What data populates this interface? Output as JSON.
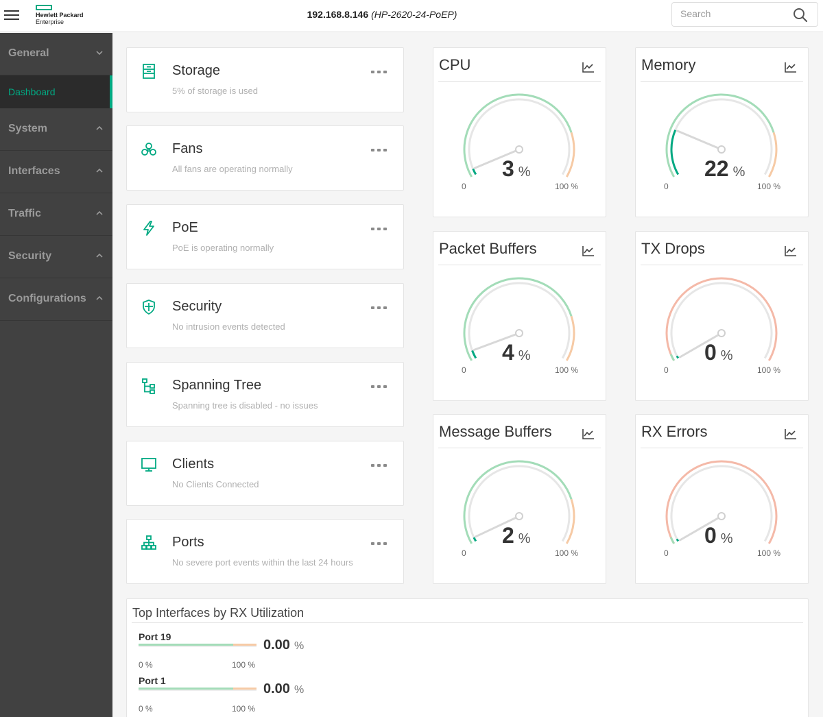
{
  "header": {
    "logo_line1": "Hewlett Packard",
    "logo_line2": "Enterprise",
    "device_ip": "192.168.8.146",
    "device_model": "(HP-2620-24-PoEP)",
    "search_placeholder": "Search",
    "brand_color": "#01a982"
  },
  "sidebar": {
    "items": [
      {
        "label": "General",
        "chevron": "chevron-down-icon"
      },
      {
        "label": "System",
        "chevron": "chevron-up-icon"
      },
      {
        "label": "Interfaces",
        "chevron": "chevron-up-icon"
      },
      {
        "label": "Traffic",
        "chevron": "chevron-up-icon"
      },
      {
        "label": "Security",
        "chevron": "chevron-up-icon"
      },
      {
        "label": "Configurations",
        "chevron": "chevron-up-icon"
      }
    ],
    "active_sub": "Dashboard"
  },
  "status_cards": [
    {
      "title": "Storage",
      "desc": "5% of storage is used",
      "icon": "storage-icon"
    },
    {
      "title": "Fans",
      "desc": "All fans are operating normally",
      "icon": "fan-icon"
    },
    {
      "title": "PoE",
      "desc": "PoE is operating normally",
      "icon": "lightning-icon"
    },
    {
      "title": "Security",
      "desc": "No intrusion events detected",
      "icon": "shield-icon"
    },
    {
      "title": "Spanning Tree",
      "desc": "Spanning tree is disabled - no issues",
      "icon": "tree-icon"
    },
    {
      "title": "Clients",
      "desc": "No Clients Connected",
      "icon": "monitor-icon"
    },
    {
      "title": "Ports",
      "desc": "No severe port events within the last 24 hours",
      "icon": "ports-icon"
    }
  ],
  "gauges": [
    {
      "title": "CPU",
      "value": "3",
      "unit": "%",
      "min": "0",
      "max": "100 %",
      "level": 0.03,
      "scheme": "normal"
    },
    {
      "title": "Memory",
      "value": "22",
      "unit": "%",
      "min": "0",
      "max": "100 %",
      "level": 0.22,
      "scheme": "normal"
    },
    {
      "title": "Packet Buffers",
      "value": "4",
      "unit": "%",
      "min": "0",
      "max": "100 %",
      "level": 0.04,
      "scheme": "normal"
    },
    {
      "title": "TX Drops",
      "value": "0",
      "unit": "%",
      "min": "0",
      "max": "100 %",
      "level": 0.0,
      "scheme": "error"
    },
    {
      "title": "Message Buffers",
      "value": "2",
      "unit": "%",
      "min": "0",
      "max": "100 %",
      "level": 0.02,
      "scheme": "normal"
    },
    {
      "title": "RX Errors",
      "value": "0",
      "unit": "%",
      "min": "0",
      "max": "100 %",
      "level": 0.0,
      "scheme": "error"
    }
  ],
  "top_interfaces": {
    "title": "Top Interfaces by RX Utilization",
    "rows": [
      {
        "port": "Port 19",
        "value": "0.00",
        "unit": "%",
        "min": "0 %",
        "max": "100 %",
        "level": 0.0
      },
      {
        "port": "Port 1",
        "value": "0.00",
        "unit": "%",
        "min": "0 %",
        "max": "100 %",
        "level": 0.0
      }
    ]
  },
  "colors": {
    "accent": "#01a982",
    "gauge_green_light": "#a3dcb8",
    "gauge_green_dark": "#01a982",
    "gauge_orange": "#f6caa5",
    "gauge_red_light": "#f4b9a8",
    "gauge_track": "#e6e6e6"
  }
}
